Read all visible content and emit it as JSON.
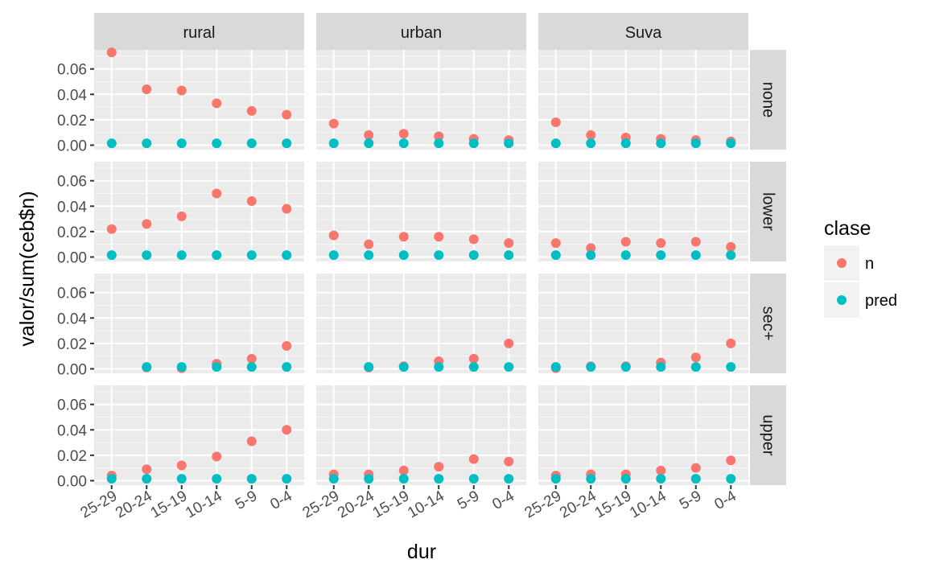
{
  "chart_data": {
    "type": "scatter",
    "title": "",
    "xlabel": "dur",
    "ylabel": "valor/sum(ceb$n)",
    "facet_cols": [
      "rural",
      "urban",
      "Suva"
    ],
    "facet_rows": [
      "none",
      "lower",
      "sec+",
      "upper"
    ],
    "categories": [
      "25-29",
      "20-24",
      "15-19",
      "10-14",
      "5-9",
      "0-4"
    ],
    "y_ticks": [
      "0.00",
      "0.02",
      "0.04",
      "0.06"
    ],
    "ylim": [
      -0.0035,
      0.075
    ],
    "grid": true,
    "legend": {
      "title": "clase",
      "position": "right",
      "items": [
        {
          "label": "n",
          "color": "#F8766D"
        },
        {
          "label": "pred",
          "color": "#00BFC4"
        }
      ]
    },
    "series": [
      {
        "name": "n",
        "color": "#F8766D",
        "panels": {
          "none": {
            "rural": [
              0.073,
              0.044,
              0.043,
              0.033,
              0.027,
              0.024
            ],
            "urban": [
              0.017,
              0.008,
              0.009,
              0.007,
              0.005,
              0.004
            ],
            "Suva": [
              0.018,
              0.008,
              0.006,
              0.005,
              0.004,
              0.003
            ]
          },
          "lower": {
            "rural": [
              0.022,
              0.026,
              0.032,
              0.05,
              0.044,
              0.038
            ],
            "urban": [
              0.017,
              0.01,
              0.016,
              0.016,
              0.014,
              0.011
            ],
            "Suva": [
              0.011,
              0.007,
              0.012,
              0.011,
              0.012,
              0.008
            ]
          },
          "sec+": {
            "rural": [
              null,
              0.001,
              0.0005,
              0.004,
              0.008,
              0.018
            ],
            "urban": [
              null,
              0.001,
              0.002,
              0.006,
              0.008,
              0.02
            ],
            "Suva": [
              0.0005,
              0.002,
              0.002,
              0.005,
              0.009,
              0.02
            ]
          },
          "upper": {
            "rural": [
              0.004,
              0.009,
              0.012,
              0.019,
              0.031,
              0.04
            ],
            "urban": [
              0.005,
              0.005,
              0.008,
              0.011,
              0.017,
              0.015
            ],
            "Suva": [
              0.004,
              0.005,
              0.005,
              0.008,
              0.01,
              0.016
            ]
          }
        }
      },
      {
        "name": "pred",
        "color": "#00BFC4",
        "panels": {
          "none": {
            "rural": [
              0.0015,
              0.0015,
              0.0015,
              0.0015,
              0.0015,
              0.0015
            ],
            "urban": [
              0.0015,
              0.0015,
              0.0015,
              0.0015,
              0.0015,
              0.0015
            ],
            "Suva": [
              0.0015,
              0.0015,
              0.0015,
              0.0015,
              0.0015,
              0.0015
            ]
          },
          "lower": {
            "rural": [
              0.0015,
              0.0015,
              0.0015,
              0.0015,
              0.0015,
              0.0015
            ],
            "urban": [
              0.0015,
              0.0015,
              0.0015,
              0.0015,
              0.0015,
              0.0015
            ],
            "Suva": [
              0.0015,
              0.0015,
              0.0015,
              0.0015,
              0.0015,
              0.0015
            ]
          },
          "sec+": {
            "rural": [
              null,
              0.0015,
              0.0015,
              0.0015,
              0.0015,
              0.0015
            ],
            "urban": [
              null,
              0.0015,
              0.0015,
              0.0015,
              0.0015,
              0.0015
            ],
            "Suva": [
              0.0015,
              0.0015,
              0.0015,
              0.0015,
              0.0015,
              0.0015
            ]
          },
          "upper": {
            "rural": [
              0.0015,
              0.0015,
              0.0015,
              0.0015,
              0.0015,
              0.0015
            ],
            "urban": [
              0.0015,
              0.0015,
              0.0015,
              0.0015,
              0.0015,
              0.0015
            ],
            "Suva": [
              0.0015,
              0.0015,
              0.0015,
              0.0015,
              0.0015,
              0.0015
            ]
          }
        }
      }
    ]
  }
}
